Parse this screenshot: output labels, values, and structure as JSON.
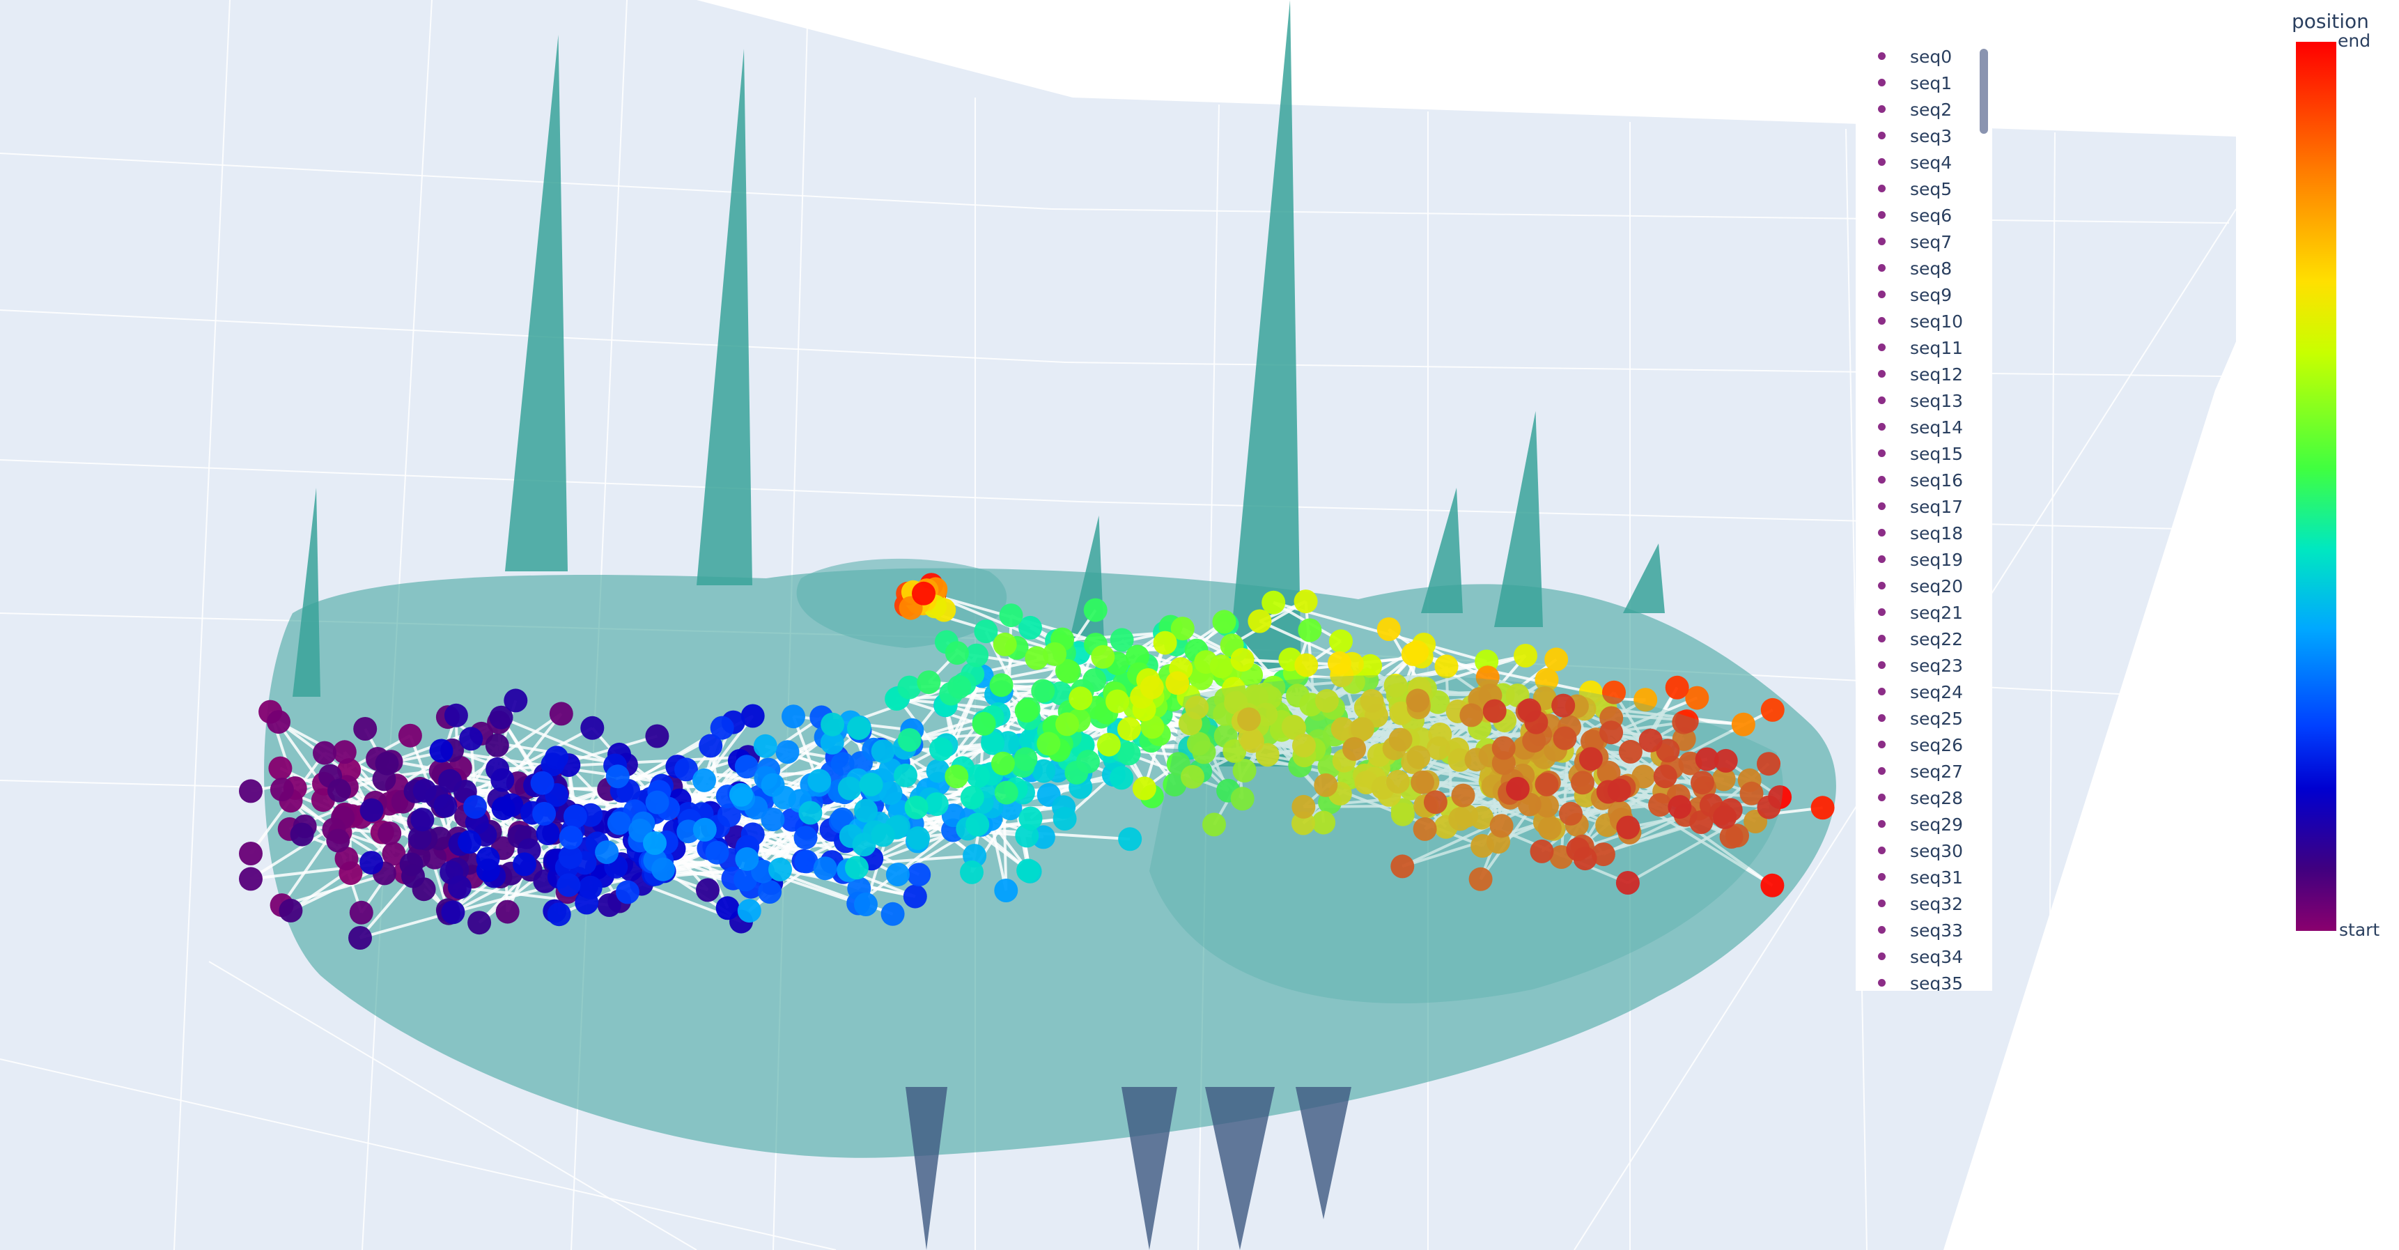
{
  "chart_data": {
    "type": "scatter",
    "subtype": "3d-scatter-with-connecting-lines-and-surface",
    "title": "",
    "colorbar": {
      "title": "position",
      "top_label": "end",
      "bottom_label": "start",
      "colorscale": [
        "#8a006e",
        "#400080",
        "#0000d0",
        "#0040ff",
        "#00a8ff",
        "#00e8c0",
        "#40ff40",
        "#c8ff00",
        "#ffe000",
        "#ff8000",
        "#ff0000"
      ]
    },
    "line_color": "#ffffff",
    "surface_color": "#3aa39a",
    "scene_background": "#e5ecf6",
    "gridline_color": "#ffffff",
    "legend": {
      "placement": "top-right",
      "marker_color": "#8c2d87",
      "entries": [
        "seq0",
        "seq1",
        "seq2",
        "seq3",
        "seq4",
        "seq5",
        "seq6",
        "seq7",
        "seq8",
        "seq9",
        "seq10",
        "seq11",
        "seq12",
        "seq13",
        "seq14",
        "seq15",
        "seq16",
        "seq17",
        "seq18",
        "seq19",
        "seq20",
        "seq21",
        "seq22",
        "seq23",
        "seq24",
        "seq25",
        "seq26",
        "seq27",
        "seq28",
        "seq29",
        "seq30",
        "seq31",
        "seq32",
        "seq33",
        "seq34",
        "seq35"
      ]
    }
  }
}
